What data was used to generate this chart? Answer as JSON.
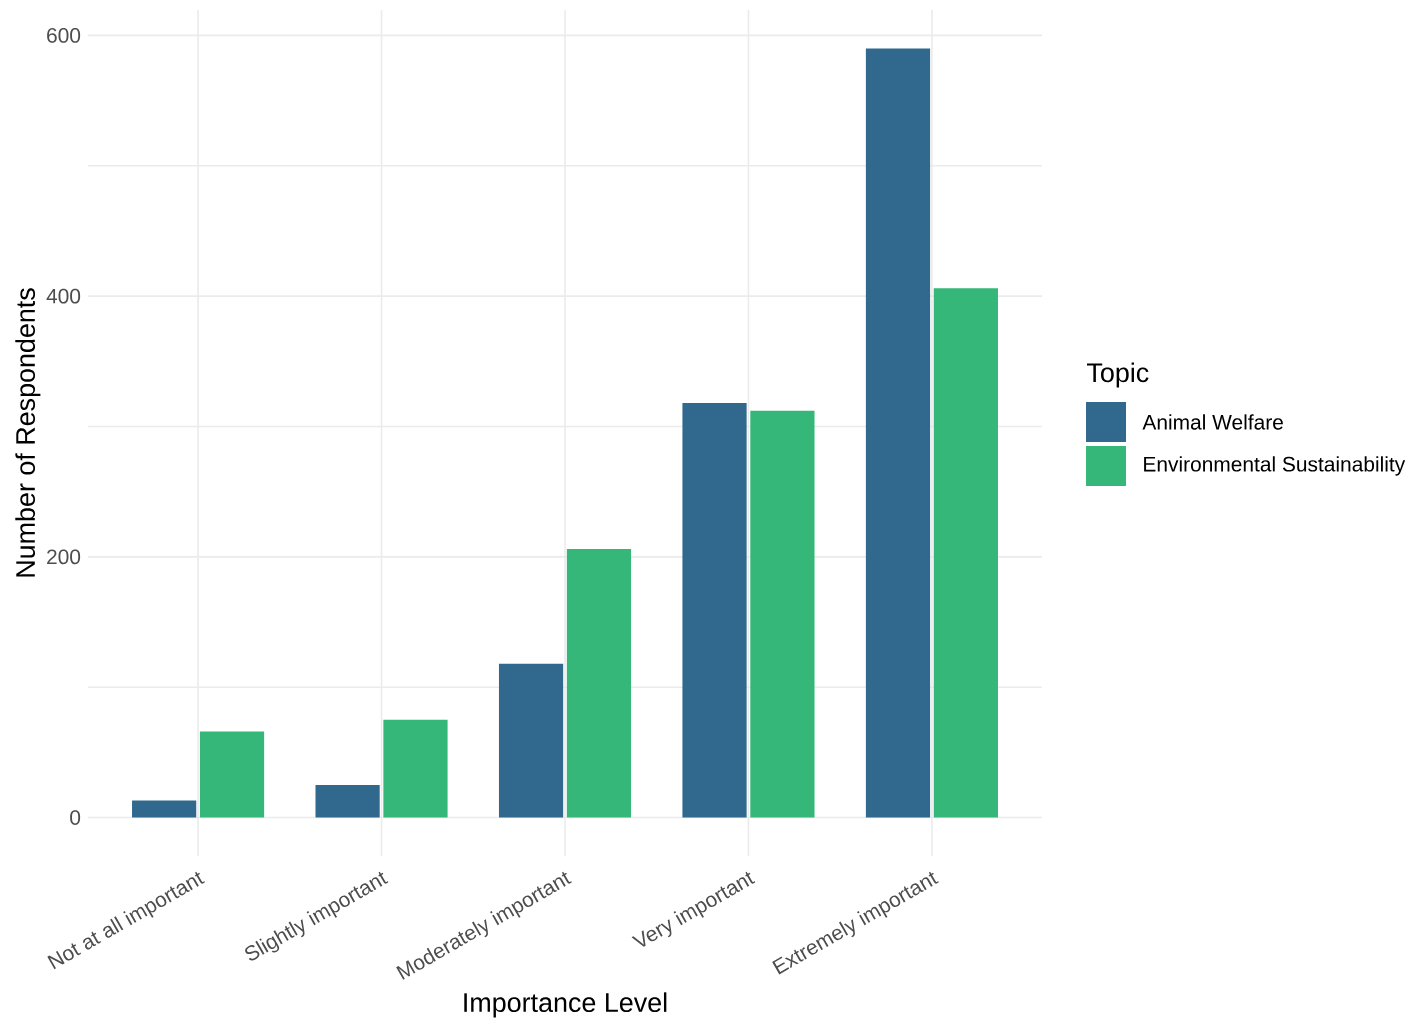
{
  "chart_data": {
    "type": "bar",
    "xlabel": "Importance Level",
    "ylabel": "Number of Respondents",
    "legend_title": "Topic",
    "categories": [
      "Not at all important",
      "Slightly important",
      "Moderately important",
      "Very important",
      "Extremely important"
    ],
    "series": [
      {
        "name": "Animal Welfare",
        "color": "#31688e",
        "values": [
          13,
          25,
          118,
          318,
          590
        ]
      },
      {
        "name": "Environmental Sustainability",
        "color": "#35b779",
        "values": [
          66,
          75,
          206,
          312,
          406
        ]
      }
    ],
    "ylim": [
      -29.5,
      619.5
    ],
    "yticks": [
      0,
      {
        "value": 100,
        "label": null
      },
      200,
      {
        "value": 300,
        "label": null
      },
      400,
      {
        "value": 500,
        "label": null
      },
      600
    ],
    "grid": true,
    "legend": "right"
  }
}
